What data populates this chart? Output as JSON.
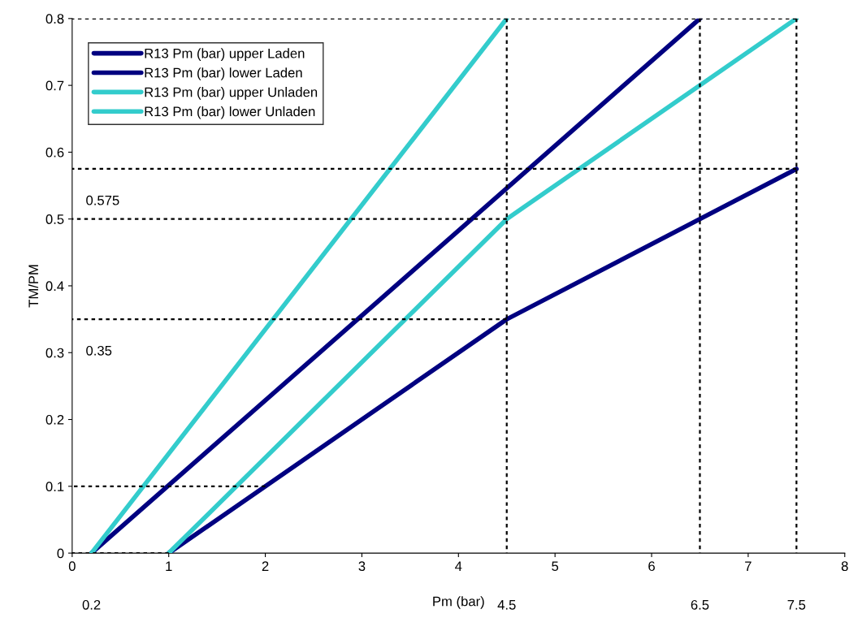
{
  "chart_data": {
    "type": "line",
    "xlabel": "Pm (bar)",
    "ylabel": "TM/PM",
    "xlim": [
      0,
      8
    ],
    "ylim": [
      0,
      0.8
    ],
    "xticks": [
      0,
      1,
      2,
      3,
      4,
      5,
      6,
      7,
      8
    ],
    "yticks": [
      0,
      0.1,
      0.2,
      0.3,
      0.4,
      0.5,
      0.6,
      0.7,
      0.8
    ],
    "grid": false,
    "legend": "top left",
    "line_style": "solid",
    "marker": "none",
    "series": [
      {
        "name": "R13 Pm (bar) upper Laden",
        "color": "#000080",
        "x": [
          0.2,
          6.5
        ],
        "values": [
          0,
          0.8
        ]
      },
      {
        "name": "R13 Pm (bar) lower Laden",
        "color": "#000080",
        "x": [
          1,
          4.5,
          7.5
        ],
        "values": [
          0,
          0.35,
          0.575
        ]
      },
      {
        "name": "R13 Pm (bar) upper Unladen",
        "color": "#33cccc",
        "x": [
          0.2,
          4.5
        ],
        "values": [
          0,
          0.8
        ]
      },
      {
        "name": "R13 Pm (bar) lower Unladen",
        "color": "#33cccc",
        "x": [
          1,
          4.5,
          7.5
        ],
        "values": [
          0,
          0.5,
          0.8
        ]
      },
      {
        "color": "#000000",
        "line_style": "dotted",
        "x": [
          0,
          7.5
        ],
        "values": [
          0.8,
          0.8
        ]
      },
      {
        "color": "#000000",
        "line_style": "dotted",
        "x": [
          0,
          7.5
        ],
        "values": [
          0.575,
          0.575
        ]
      },
      {
        "color": "#000000",
        "line_style": "dotted",
        "x": [
          0,
          4.5
        ],
        "values": [
          0.5,
          0.5
        ]
      },
      {
        "color": "#000000",
        "line_style": "dotted",
        "x": [
          0,
          4.5
        ],
        "values": [
          0.35,
          0.35
        ]
      },
      {
        "color": "#000000",
        "line_style": "dotted",
        "x": [
          0,
          2
        ],
        "values": [
          0.1,
          0.1
        ]
      },
      {
        "color": "#000000",
        "line_style": "dotted",
        "x": [
          0,
          1
        ],
        "values": [
          0,
          0
        ]
      },
      {
        "color": "#000000",
        "line_style": "dotted",
        "x": [
          4.5,
          4.5
        ],
        "values": [
          0,
          0.8
        ]
      },
      {
        "color": "#000000",
        "line_style": "dotted",
        "x": [
          6.5,
          6.5
        ],
        "values": [
          0,
          0.8
        ]
      },
      {
        "color": "#000000",
        "line_style": "dotted",
        "x": [
          7.5,
          7.5
        ],
        "values": [
          0,
          0.8
        ]
      }
    ],
    "annotations": [
      {
        "text": "0.575",
        "x": 0,
        "y": 0.575
      },
      {
        "text": "0.35",
        "x": 0,
        "y": 0.35
      },
      "0.2",
      "4.5",
      "6.5",
      "7.5"
    ]
  }
}
